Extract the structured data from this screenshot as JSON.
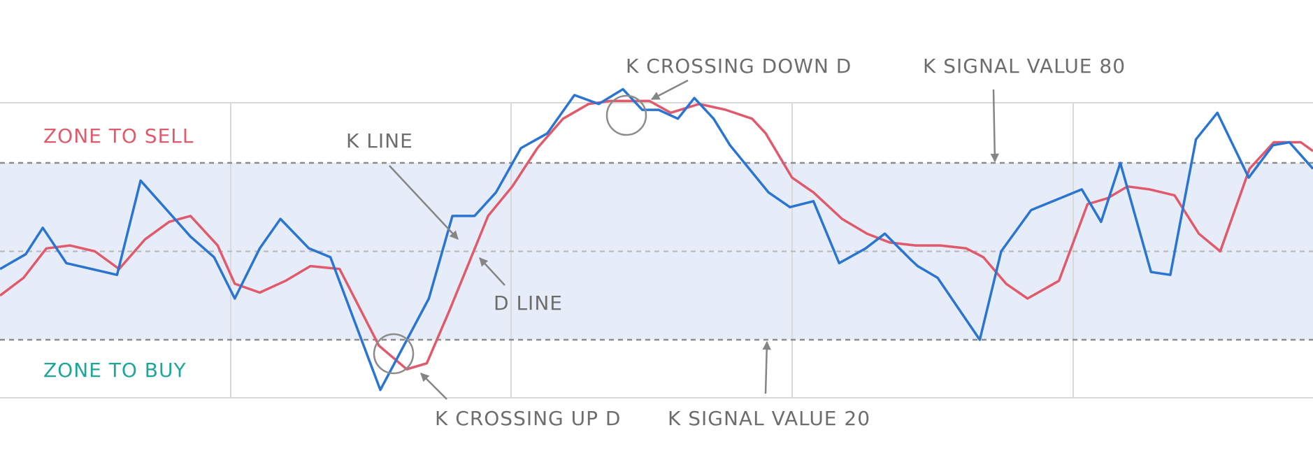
{
  "chart_data": {
    "type": "line",
    "ylim": [
      -20,
      120
    ],
    "signal_levels": {
      "upper": 80,
      "middle": 50,
      "lower": 20
    },
    "series": [
      {
        "key": "k",
        "color": "#2a74d2",
        "x": [
          0,
          3.6,
          6,
          9.3,
          16.4,
          19.7,
          26.7,
          30,
          32.9,
          36.4,
          39.3,
          43.3,
          46.3,
          53.3,
          60.1,
          63.4,
          66.5,
          69.5,
          73,
          76.7,
          80.5,
          83.9,
          87.3,
          90,
          92.3,
          95,
          97.3,
          100,
          102.3,
          107.7,
          110.7,
          114,
          117.6,
          121.3,
          124,
          127.7,
          128.6,
          131.4,
          137.3,
          140.3,
          144.5,
          151.6,
          154.3,
          157,
          161.3,
          164,
          167.6,
          170.6,
          175,
          178.4,
          180.7,
          184
        ],
        "y": [
          44,
          49,
          58,
          46,
          42,
          74,
          55,
          48,
          34,
          51,
          61,
          51,
          48,
          3,
          34,
          62,
          62,
          70,
          85,
          90,
          103,
          100,
          105,
          98,
          98,
          95,
          102,
          95,
          86,
          70,
          65,
          67,
          46,
          51,
          56,
          47,
          45,
          41,
          20,
          50,
          64,
          71,
          60,
          80,
          43,
          42,
          88,
          97,
          75,
          86,
          87,
          78
        ]
      },
      {
        "key": "d",
        "color": "#e05a6c",
        "x": [
          0,
          3.3,
          6.5,
          9.8,
          13.3,
          16.7,
          20.3,
          23.7,
          26.7,
          30.5,
          32.9,
          36.4,
          40,
          43.5,
          47.6,
          53.1,
          57,
          59.8,
          63,
          68.4,
          71.8,
          75.3,
          78.9,
          82.5,
          85.6,
          88.1,
          91,
          94,
          98,
          101.7,
          105.4,
          107.3,
          111,
          114,
          118,
          121.5,
          124.7,
          128.3,
          131.8,
          135.4,
          137.8,
          141,
          144,
          148.4,
          152.4,
          155.2,
          158,
          161.1,
          164.6,
          168,
          171,
          175.1,
          178.5,
          182.3,
          184
        ],
        "y": [
          35,
          41,
          51,
          52,
          50,
          44,
          54,
          60,
          62,
          52,
          39,
          36,
          40,
          45,
          44,
          18,
          10,
          12,
          30,
          62,
          72,
          85,
          95,
          100,
          101,
          101,
          101,
          97,
          100,
          98,
          95,
          90,
          75,
          70,
          61,
          56,
          53,
          52,
          52,
          51,
          48,
          39,
          34,
          40,
          66,
          68,
          72,
          71,
          69,
          56,
          50,
          78,
          87,
          87,
          84
        ]
      }
    ],
    "annotations": {
      "zone_sell": "ZONE TO SELL",
      "zone_buy": "ZONE TO BUY",
      "k_line": "K LINE",
      "d_line": "D LINE",
      "k_crossing_down": "K CROSSING DOWN D",
      "k_crossing_up": "K CROSSING UP D",
      "k_signal_80": "K SIGNAL VALUE 80",
      "k_signal_20": "K SIGNAL VALUE 20"
    },
    "colors": {
      "band": "#e6edf8",
      "sell": "#e05a6c",
      "buy": "#1fa69a",
      "annotation": "#6d6d6d",
      "grid": "#d9d9d9",
      "dashed": "#8c8c8c"
    }
  }
}
